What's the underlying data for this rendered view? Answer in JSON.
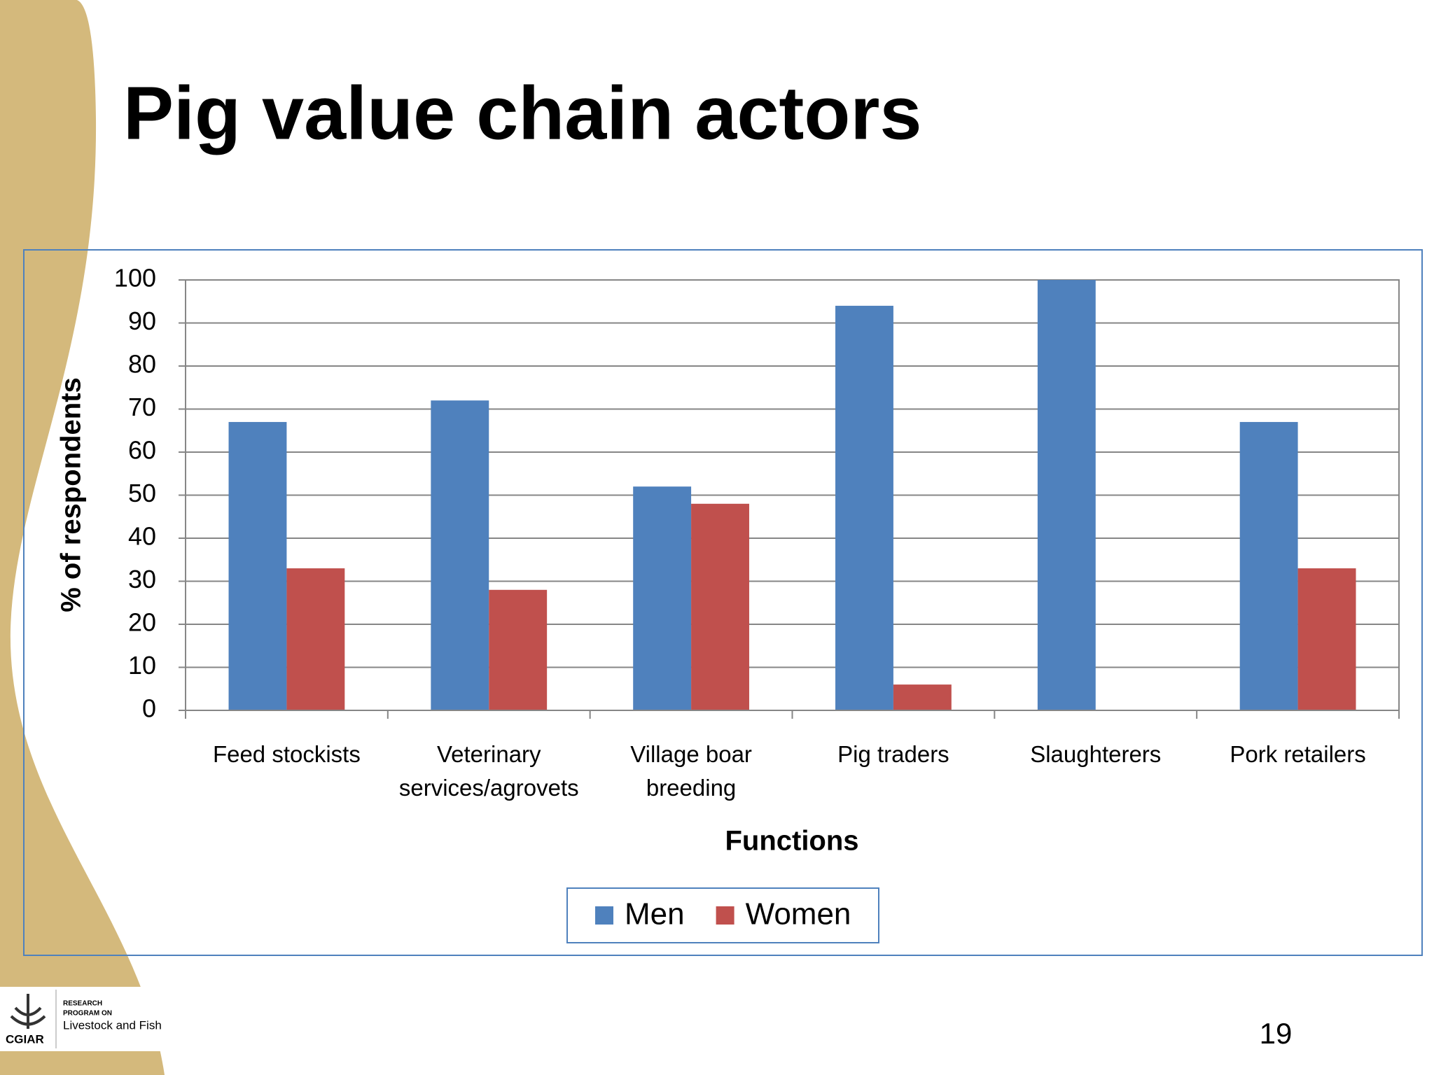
{
  "slide": {
    "title": "Pig value chain actors",
    "page_number": "19",
    "logo": {
      "org": "CGIAR",
      "line1": "RESEARCH",
      "line2": "PROGRAM ON",
      "line3": "Livestock and Fish"
    }
  },
  "chart_data": {
    "type": "bar",
    "x_label": "Functions",
    "y_label": "% of respondents",
    "categories": [
      "Feed stockists",
      "Veterinary services/agrovets",
      "Village boar breeding",
      "Pig traders",
      "Slaughterers",
      "Pork retailers"
    ],
    "series": [
      {
        "name": "Men",
        "color": "#4f81bd",
        "values": [
          67,
          72,
          52,
          94,
          100,
          67
        ]
      },
      {
        "name": "Women",
        "color": "#c0504d",
        "values": [
          33,
          28,
          48,
          6,
          0,
          33
        ]
      }
    ],
    "ylim": [
      0,
      100
    ],
    "yticks": [
      0,
      10,
      20,
      30,
      40,
      50,
      60,
      70,
      80,
      90,
      100
    ],
    "grid": true,
    "legend": "bottom"
  }
}
